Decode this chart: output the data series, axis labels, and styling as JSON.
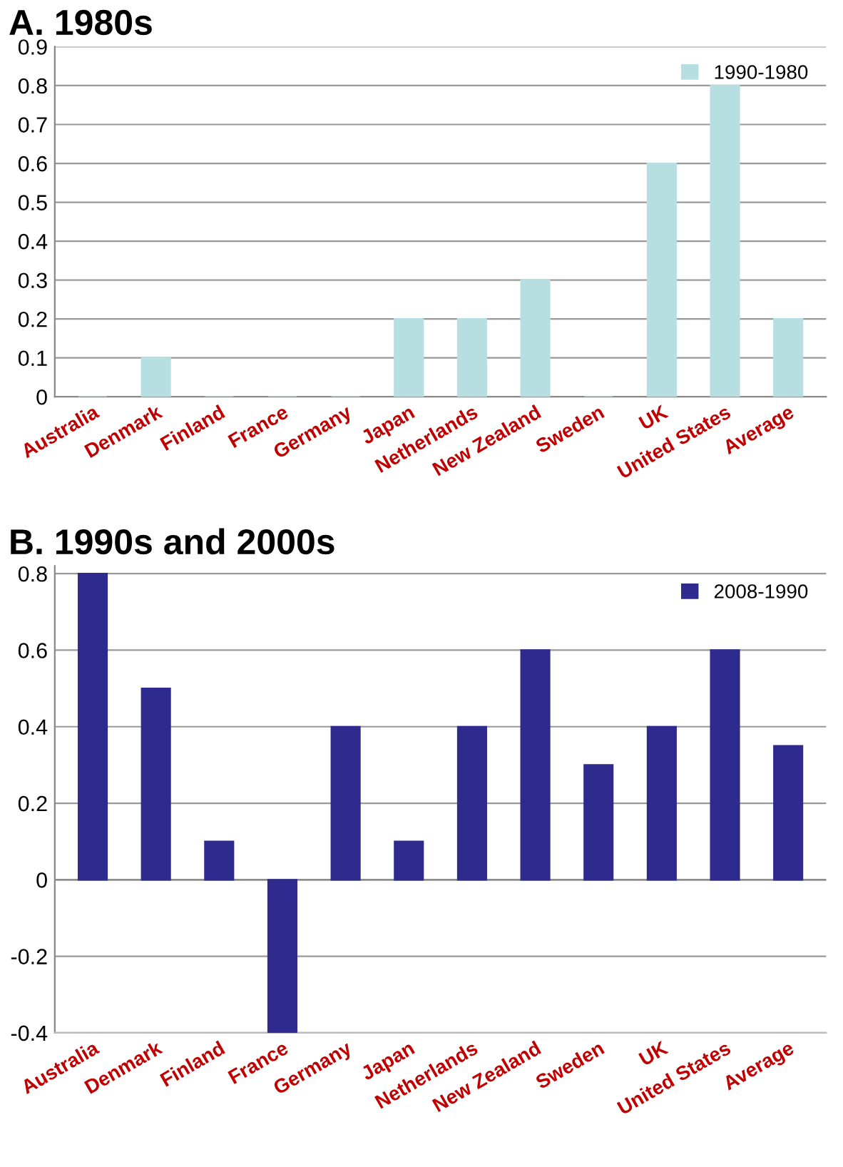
{
  "chart_data": [
    {
      "type": "bar",
      "title": "A. 1980s",
      "categories": [
        "Australia",
        "Denmark",
        "Finland",
        "France",
        "Germany",
        "Japan",
        "Netherlands",
        "New Zealand",
        "Sweden",
        "UK",
        "United States",
        "Average"
      ],
      "series": [
        {
          "name": "1990-1980",
          "color": "#b7dfe2",
          "values": [
            0,
            0.1,
            0,
            0,
            0,
            0.2,
            0.2,
            0.3,
            0,
            0.6,
            0.8,
            0.2
          ]
        }
      ],
      "ylim": [
        0,
        0.9
      ],
      "yticks": [
        0,
        0.1,
        0.2,
        0.3,
        0.4,
        0.5,
        0.6,
        0.7,
        0.8,
        0.9
      ],
      "grid": "y",
      "legend": "top right"
    },
    {
      "type": "bar",
      "title": "B. 1990s and 2000s",
      "categories": [
        "Australia",
        "Denmark",
        "Finland",
        "France",
        "Germany",
        "Japan",
        "Netherlands",
        "New Zealand",
        "Sweden",
        "UK",
        "United States",
        "Average"
      ],
      "series": [
        {
          "name": "2008-1990",
          "color": "#2e2a8e",
          "values": [
            0.8,
            0.5,
            0.1,
            -0.4,
            0.4,
            0.1,
            0.4,
            0.6,
            0.3,
            0.4,
            0.6,
            0.35
          ]
        }
      ],
      "ylim": [
        -0.4,
        0.82
      ],
      "yticks": [
        -0.4,
        -0.2,
        0,
        0.2,
        0.4,
        0.6,
        0.8
      ],
      "grid": "y",
      "legend": "top right"
    }
  ]
}
